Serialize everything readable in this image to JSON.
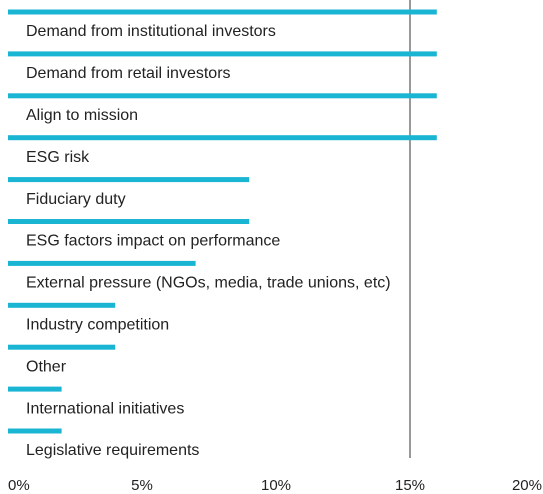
{
  "chart_data": {
    "type": "bar",
    "orientation": "horizontal",
    "categories": [
      "Demand from institutional investors",
      "Demand from retail investors",
      "Align to mission",
      "ESG risk",
      "Fiduciary duty",
      "ESG factors impact on performance",
      "External pressure (NGOs, media, trade unions, etc)",
      "Industry competition",
      "Other",
      "International initiatives",
      "Legislative requirements"
    ],
    "values": [
      16,
      16,
      16,
      16,
      9,
      9,
      7,
      4,
      4,
      2,
      2
    ],
    "color": "#1ab5d3",
    "xlim": [
      0,
      20
    ],
    "xticks": [
      {
        "value": 0,
        "label": "0%"
      },
      {
        "value": 5,
        "label": "5%"
      },
      {
        "value": 10,
        "label": "10%"
      },
      {
        "value": 15,
        "label": "15%"
      },
      {
        "value": 20,
        "label": "20%"
      }
    ],
    "reference_line": 15
  }
}
